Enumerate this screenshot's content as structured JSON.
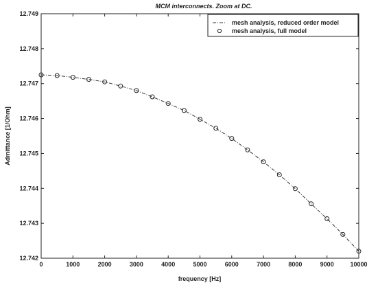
{
  "chart_data": {
    "type": "line",
    "title": "MCM interconnects. Zoom at DC.",
    "xlabel": "frequency [Hz]",
    "ylabel": "Admittance [1/Ohm]",
    "xlim": [
      0,
      10000
    ],
    "ylim": [
      12.742,
      12.749
    ],
    "xticks": [
      "0",
      "1000",
      "2000",
      "3000",
      "4000",
      "5000",
      "6000",
      "7000",
      "8000",
      "9000",
      "10000"
    ],
    "yticks": [
      "12.742",
      "12.743",
      "12.744",
      "12.745",
      "12.746",
      "12.747",
      "12.748",
      "12.749"
    ],
    "grid": false,
    "legend_position": "top-right",
    "series": [
      {
        "name": "mesh analysis, reduced order model",
        "style": "dash-dot line",
        "x": [
          0,
          500,
          1000,
          1500,
          2000,
          2500,
          3000,
          3500,
          4000,
          4500,
          5000,
          5500,
          6000,
          6500,
          7000,
          7500,
          8000,
          8500,
          9000,
          9500,
          10000
        ],
        "y": [
          12.74725,
          12.74723,
          12.74718,
          12.74712,
          12.74705,
          12.74693,
          12.7468,
          12.74662,
          12.74643,
          12.74623,
          12.74598,
          12.74572,
          12.74543,
          12.7451,
          12.74476,
          12.74439,
          12.74399,
          12.74356,
          12.74313,
          12.74268,
          12.7422
        ]
      },
      {
        "name": "mesh analysis, full model",
        "style": "circle markers",
        "x": [
          0,
          500,
          1000,
          1500,
          2000,
          2500,
          3000,
          3500,
          4000,
          4500,
          5000,
          5500,
          6000,
          6500,
          7000,
          7500,
          8000,
          8500,
          9000,
          9500,
          10000
        ],
        "y": [
          12.74725,
          12.74723,
          12.74718,
          12.74712,
          12.74705,
          12.74693,
          12.7468,
          12.74662,
          12.74643,
          12.74623,
          12.74598,
          12.74572,
          12.74543,
          12.7451,
          12.74476,
          12.74439,
          12.74399,
          12.74356,
          12.74313,
          12.74268,
          12.7422
        ]
      }
    ]
  }
}
